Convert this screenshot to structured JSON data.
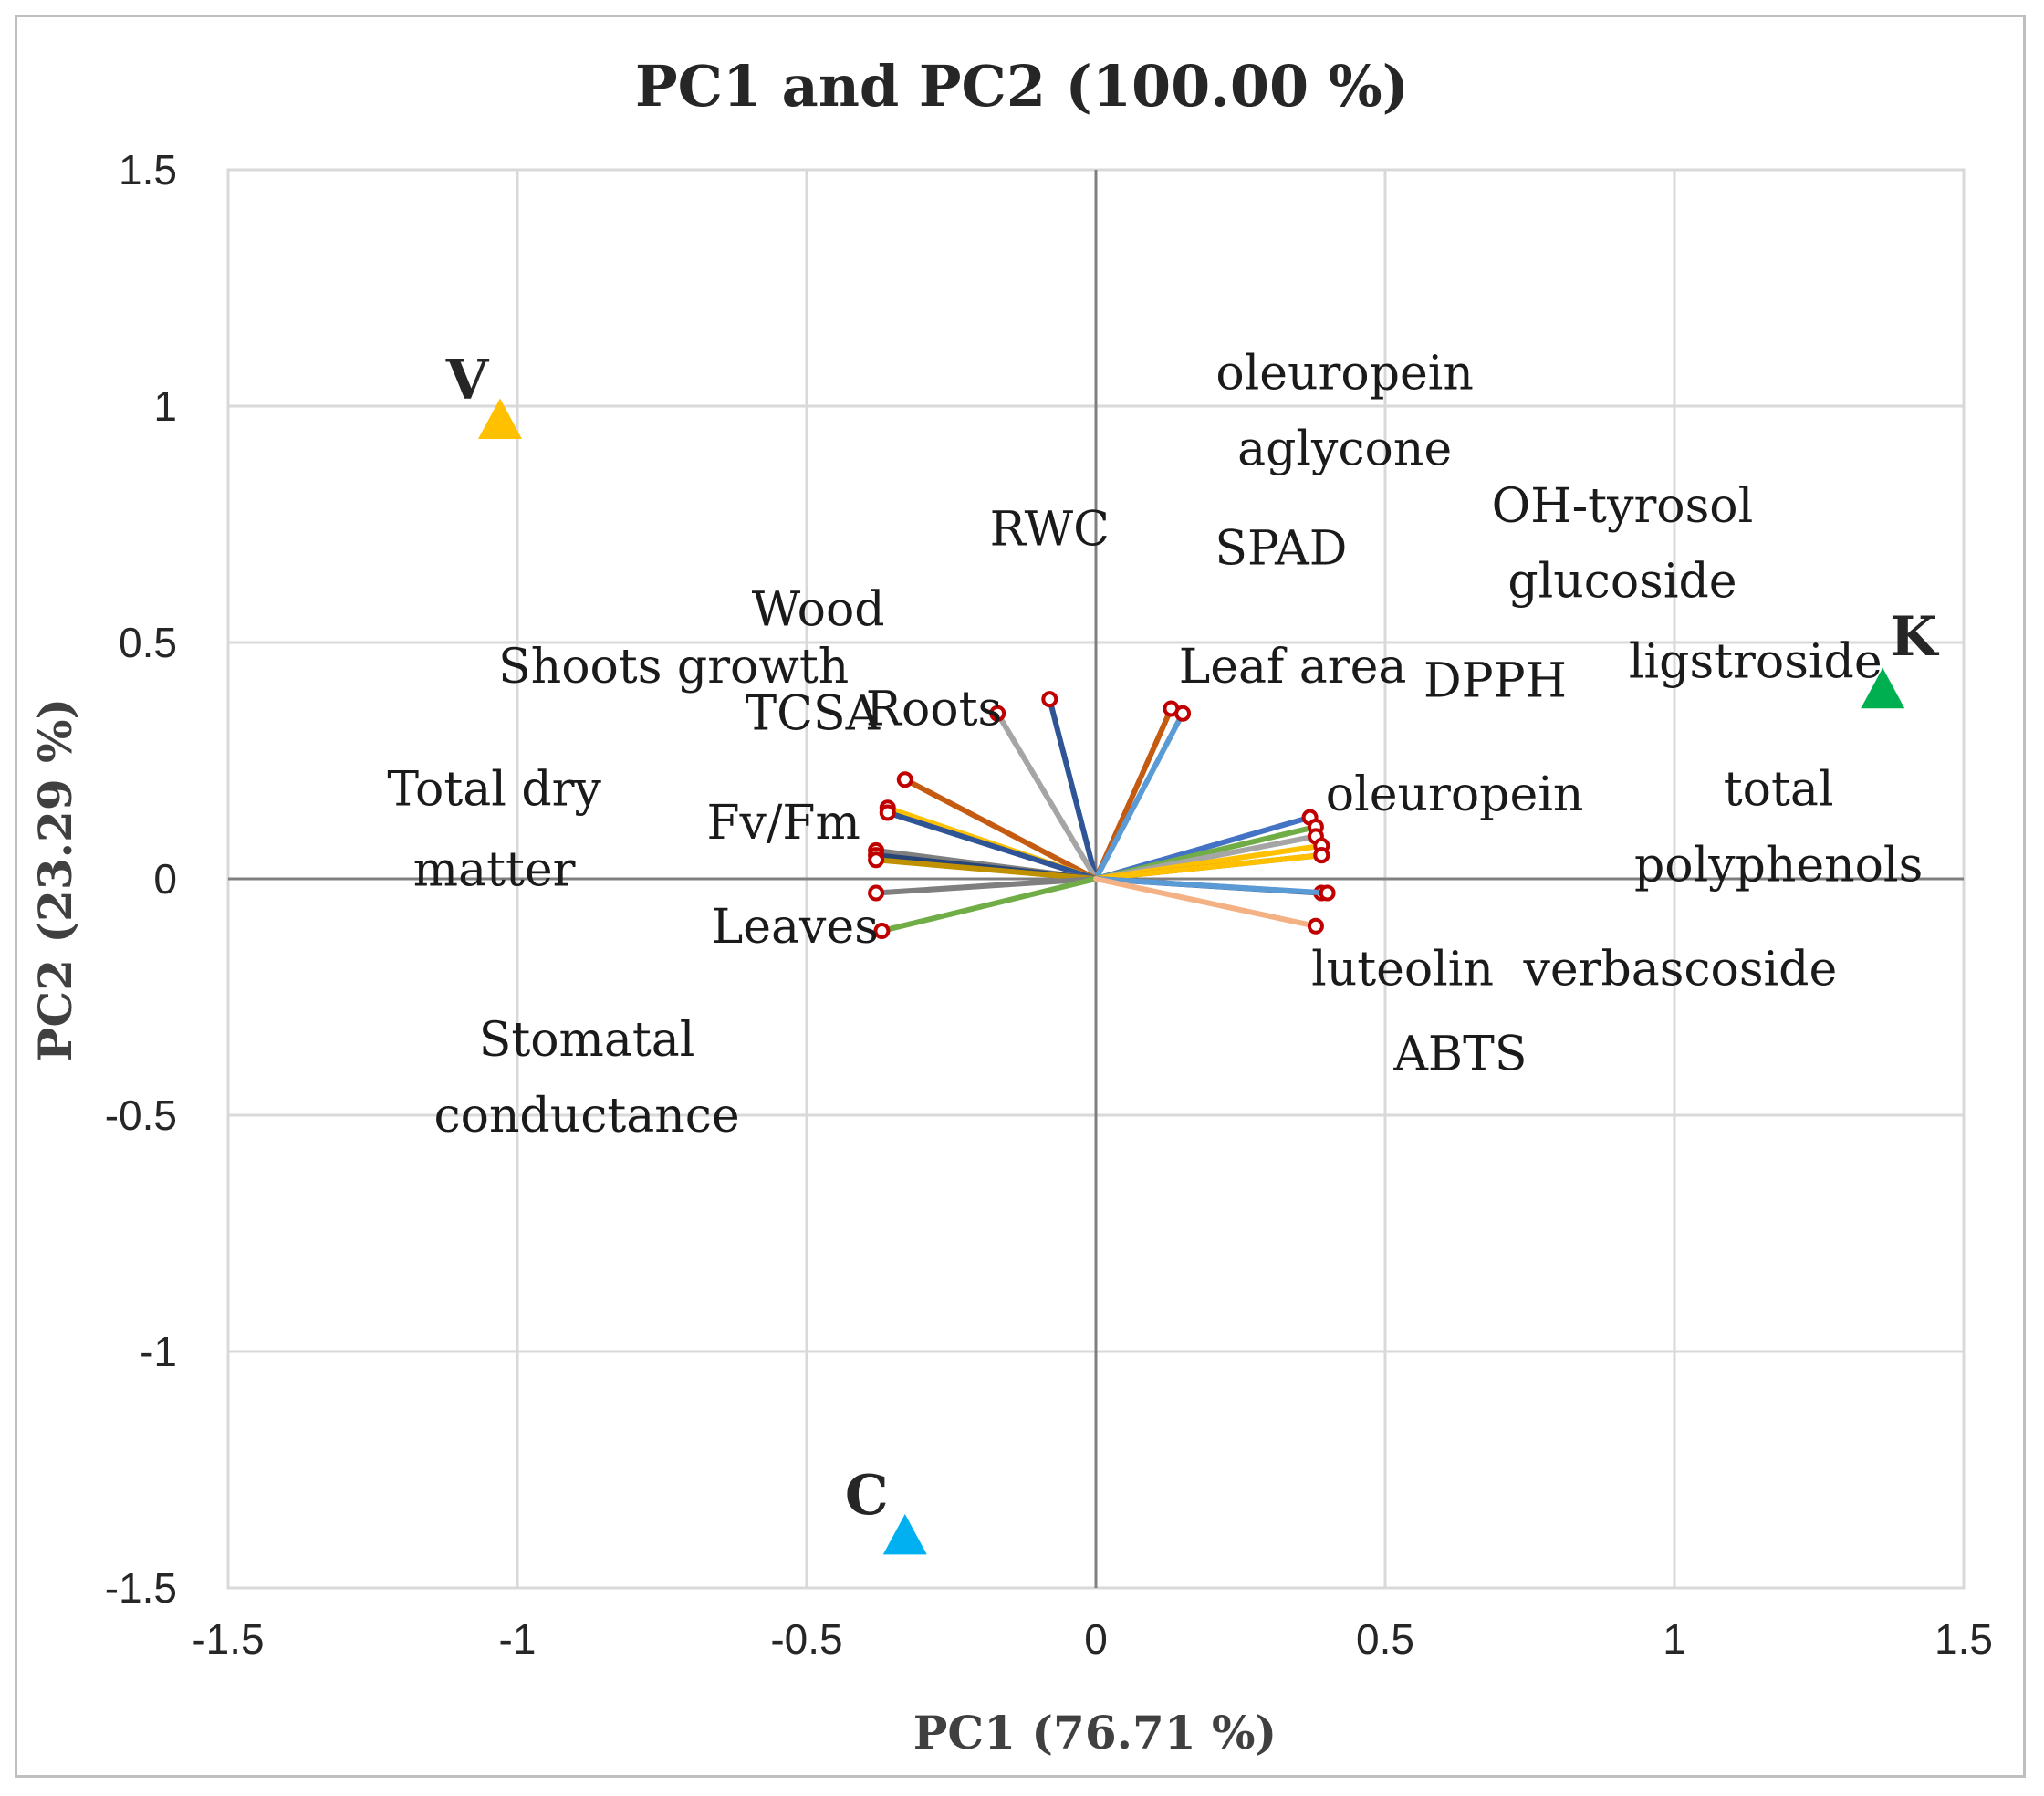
{
  "chart_data": {
    "type": "scatter",
    "title": "PC1 and PC2 (100.00 %)",
    "xlabel": "PC1 (76.71 %)",
    "ylabel": "PC2 (23.29 %)",
    "xlim": [
      -1.5,
      1.5
    ],
    "ylim": [
      -1.5,
      1.5
    ],
    "xticks": [
      -1.5,
      -1,
      -0.5,
      0,
      0.5,
      1,
      1.5
    ],
    "yticks": [
      -1.5,
      -1,
      -0.5,
      0,
      0.5,
      1,
      1.5
    ],
    "xtick_labels": [
      "-1.5",
      "-1",
      "-0.5",
      "0",
      "0.5",
      "1",
      "1.5"
    ],
    "ytick_labels": [
      "-1.5",
      "-1",
      "-0.5",
      "0",
      "0.5",
      "1",
      "1.5"
    ],
    "grid": true,
    "observations": [
      {
        "name": "V",
        "x": -1.03,
        "y": 0.97,
        "color": "#FFC000"
      },
      {
        "name": "C",
        "x": -0.33,
        "y": -1.39,
        "color": "#00B0F0"
      },
      {
        "name": "K",
        "x": 1.36,
        "y": 0.4,
        "color": "#00B050"
      }
    ],
    "loadings": [
      {
        "x": -0.08,
        "y": 0.38,
        "color": "#2F5597"
      },
      {
        "x": -0.17,
        "y": 0.35,
        "color": "#A5A5A5"
      },
      {
        "x": 0.13,
        "y": 0.36,
        "color": "#C55A11"
      },
      {
        "x": 0.15,
        "y": 0.35,
        "color": "#5B9BD5"
      },
      {
        "x": -0.33,
        "y": 0.21,
        "color": "#C55A11"
      },
      {
        "x": -0.36,
        "y": 0.15,
        "color": "#FFC000"
      },
      {
        "x": -0.36,
        "y": 0.14,
        "color": "#2F5597"
      },
      {
        "x": -0.38,
        "y": 0.06,
        "color": "#7F7F7F"
      },
      {
        "x": -0.38,
        "y": 0.05,
        "color": "#264478"
      },
      {
        "x": -0.38,
        "y": 0.04,
        "color": "#BF9000"
      },
      {
        "x": -0.38,
        "y": -0.03,
        "color": "#7F7F7F"
      },
      {
        "x": -0.37,
        "y": -0.11,
        "color": "#70AD47"
      },
      {
        "x": 0.37,
        "y": 0.13,
        "color": "#4472C4"
      },
      {
        "x": 0.38,
        "y": 0.11,
        "color": "#70AD47"
      },
      {
        "x": 0.38,
        "y": 0.09,
        "color": "#A5A5A5"
      },
      {
        "x": 0.39,
        "y": 0.07,
        "color": "#FFC000"
      },
      {
        "x": 0.39,
        "y": 0.05,
        "color": "#806000"
      },
      {
        "x": 0.39,
        "y": 0.05,
        "color": "#FFC000"
      },
      {
        "x": 0.39,
        "y": -0.03,
        "color": "#264478"
      },
      {
        "x": 0.4,
        "y": -0.03,
        "color": "#5B9BD5"
      },
      {
        "x": 0.38,
        "y": -0.1,
        "color": "#F4B183"
      }
    ],
    "variable_labels": [
      {
        "text": "oleuropein",
        "x": 0.43,
        "y": 1.07
      },
      {
        "text": "aglycone",
        "x": 0.43,
        "y": 0.91
      },
      {
        "text": "RWC",
        "x": -0.08,
        "y": 0.74
      },
      {
        "text": "SPAD",
        "x": 0.32,
        "y": 0.7
      },
      {
        "text": "OH-tyrosol",
        "x": 0.91,
        "y": 0.79
      },
      {
        "text": "glucoside",
        "x": 0.91,
        "y": 0.63
      },
      {
        "text": "Wood",
        "x": -0.48,
        "y": 0.57
      },
      {
        "text": "Shoots growth",
        "x": -0.73,
        "y": 0.45
      },
      {
        "text": "Leaf area",
        "x": 0.34,
        "y": 0.45
      },
      {
        "text": "DPPH",
        "x": 0.69,
        "y": 0.42
      },
      {
        "text": "ligstroside",
        "x": 1.14,
        "y": 0.46
      },
      {
        "text": "TCSA",
        "x": -0.49,
        "y": 0.35
      },
      {
        "text": "Roots",
        "x": -0.28,
        "y": 0.36
      },
      {
        "text": "Total dry",
        "x": -1.04,
        "y": 0.19
      },
      {
        "text": "matter",
        "x": -1.04,
        "y": 0.02
      },
      {
        "text": "Fv/Fm",
        "x": -0.54,
        "y": 0.12
      },
      {
        "text": "oleuropein",
        "x": 0.62,
        "y": 0.18
      },
      {
        "text": "total",
        "x": 1.18,
        "y": 0.19
      },
      {
        "text": "polyphenols",
        "x": 1.18,
        "y": 0.03
      },
      {
        "text": "Leaves",
        "x": -0.52,
        "y": -0.1
      },
      {
        "text": "luteolin",
        "x": 0.53,
        "y": -0.19
      },
      {
        "text": "verbascoside",
        "x": 1.01,
        "y": -0.19
      },
      {
        "text": "ABTS",
        "x": 0.63,
        "y": -0.37
      },
      {
        "text": "Stomatal",
        "x": -0.88,
        "y": -0.34
      },
      {
        "text": "conductance",
        "x": -0.88,
        "y": -0.5
      }
    ]
  }
}
